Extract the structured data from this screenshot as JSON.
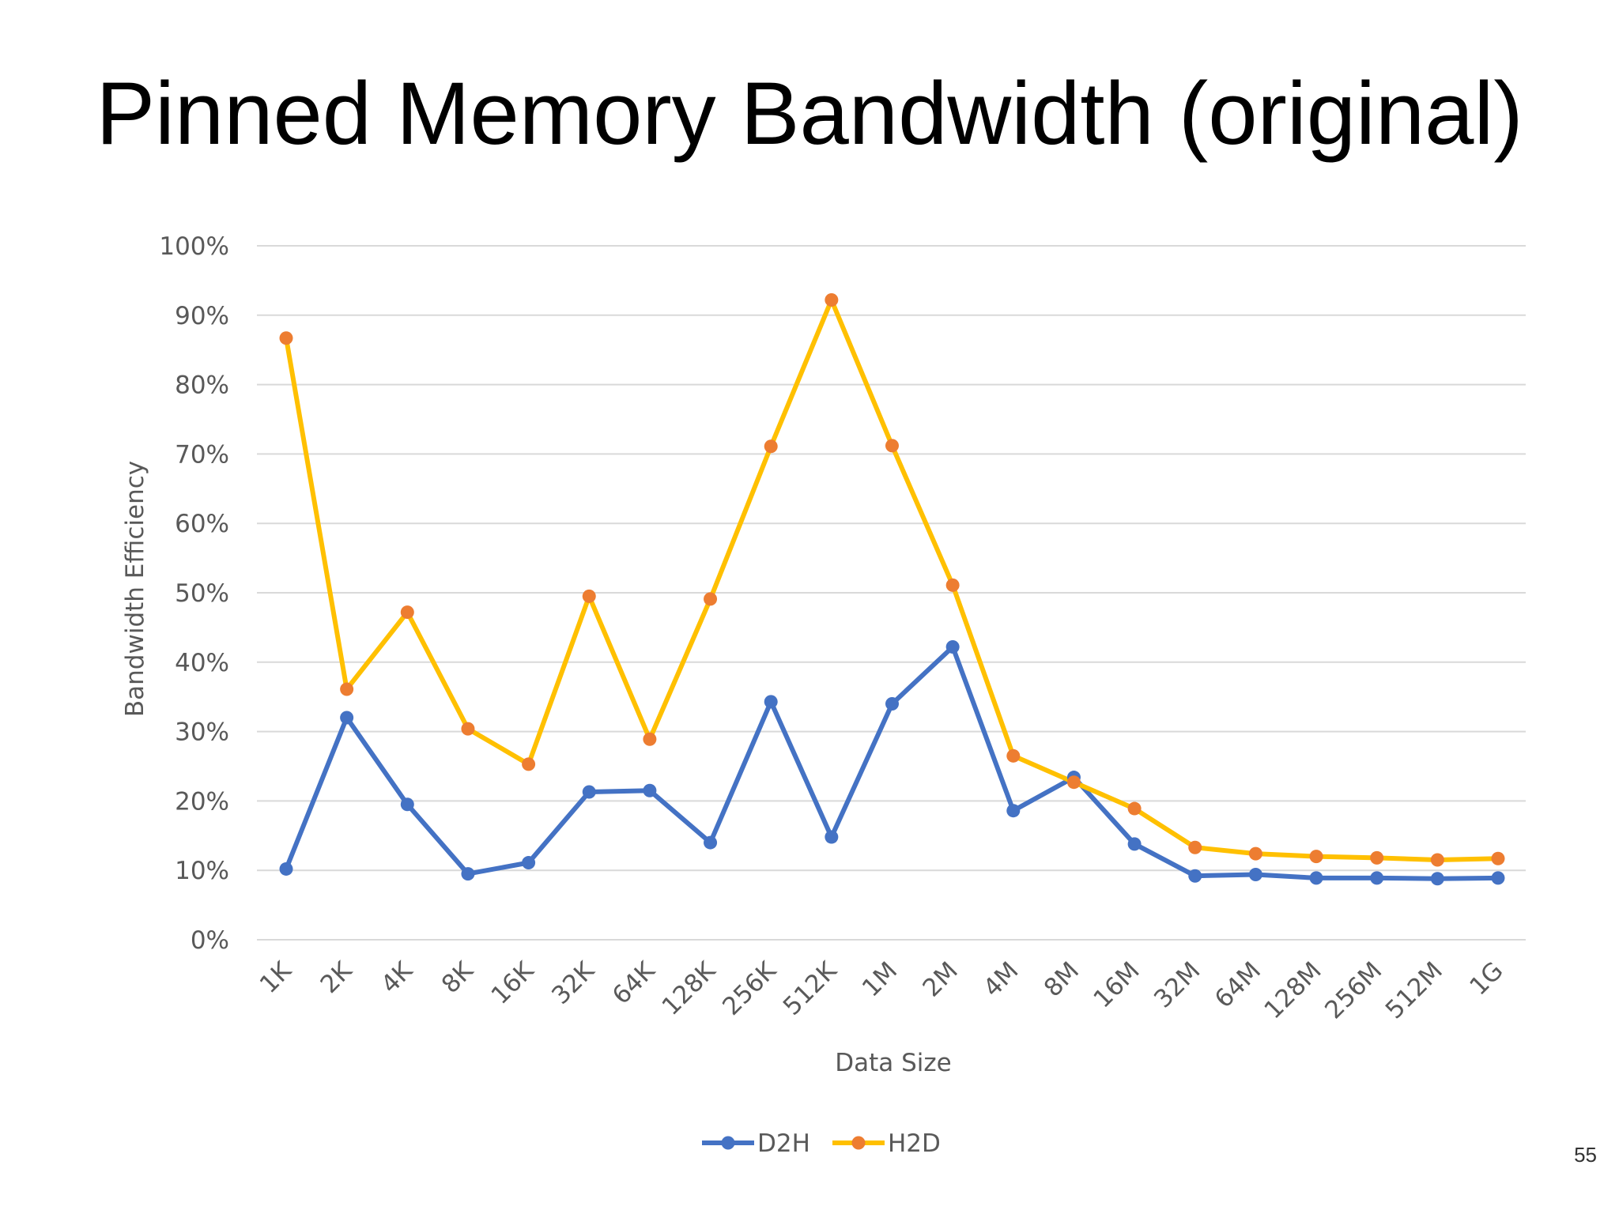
{
  "slide": {
    "title": "Pinned Memory Bandwidth (original)",
    "page_number": "55"
  },
  "chart_data": {
    "type": "line",
    "title": "",
    "xlabel": "Data Size",
    "ylabel": "Bandwidth Efficiency",
    "ylim": [
      0,
      100
    ],
    "yticks": [
      "0%",
      "10%",
      "20%",
      "30%",
      "40%",
      "50%",
      "60%",
      "70%",
      "80%",
      "90%",
      "100%"
    ],
    "grid": true,
    "legend_position": "bottom",
    "categories": [
      "1K",
      "2K",
      "4K",
      "8K",
      "16K",
      "32K",
      "64K",
      "128K",
      "256K",
      "512K",
      "1M",
      "2M",
      "4M",
      "8M",
      "16M",
      "32M",
      "64M",
      "128M",
      "256M",
      "512M",
      "1G"
    ],
    "series": [
      {
        "name": "D2H",
        "color": "#4472C4",
        "values": [
          10.2,
          32.0,
          19.5,
          9.5,
          11.1,
          21.3,
          21.5,
          14.0,
          34.3,
          14.8,
          34.0,
          42.2,
          18.6,
          23.4,
          13.8,
          9.2,
          9.4,
          8.9,
          8.9,
          8.8,
          8.9
        ]
      },
      {
        "name": "H2D",
        "color": "#FFC000",
        "marker_color": "#ED7D31",
        "values": [
          86.7,
          36.1,
          47.2,
          30.4,
          25.3,
          49.5,
          28.9,
          49.1,
          71.1,
          92.2,
          71.2,
          51.1,
          26.5,
          22.7,
          18.9,
          13.3,
          12.4,
          12.0,
          11.8,
          11.5,
          11.7
        ]
      }
    ]
  }
}
